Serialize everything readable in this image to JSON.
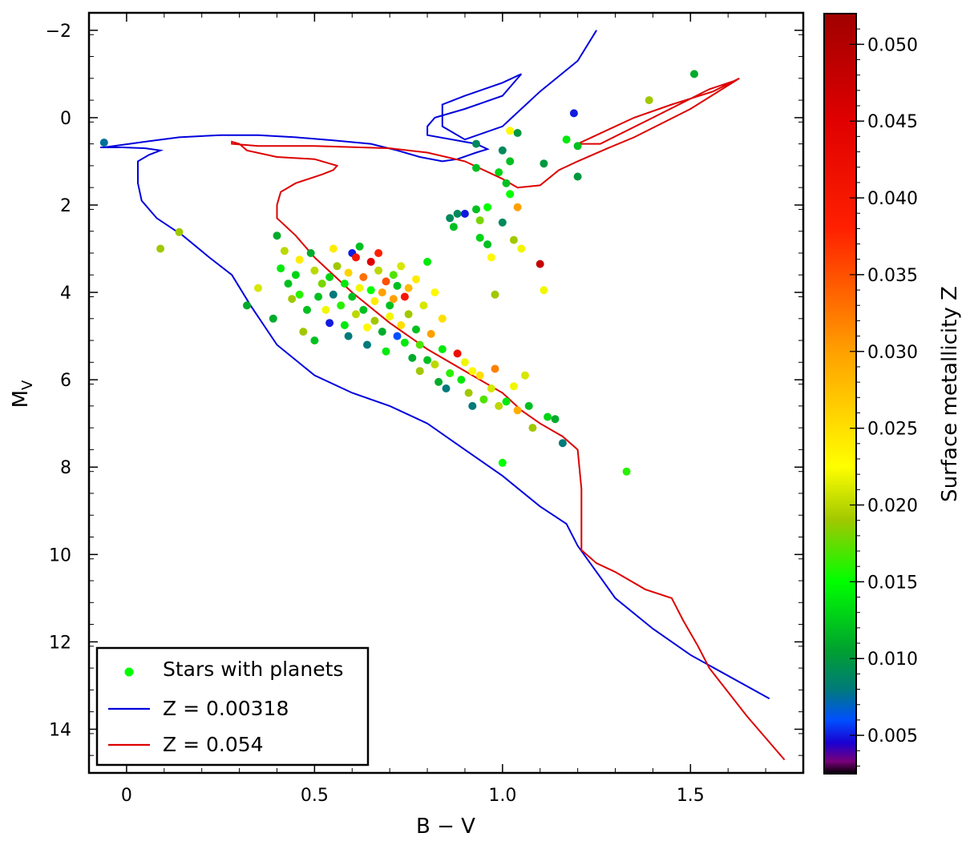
{
  "chart_data": {
    "type": "scatter",
    "xlabel": "B − V",
    "ylabel_main": "M",
    "ylabel_sub": "V",
    "xlim": [
      -0.1,
      1.8
    ],
    "ylim": [
      15.0,
      -2.4
    ],
    "y_inverted": true,
    "x_ticks": [
      {
        "value": 0,
        "label": "0"
      },
      {
        "value": 0.5,
        "label": "0.5"
      },
      {
        "value": 1.0,
        "label": "1.0"
      },
      {
        "value": 1.5,
        "label": "1.5"
      }
    ],
    "y_ticks": [
      {
        "value": -2,
        "label": "−2"
      },
      {
        "value": 0,
        "label": "0"
      },
      {
        "value": 2,
        "label": "2"
      },
      {
        "value": 4,
        "label": "4"
      },
      {
        "value": 6,
        "label": "6"
      },
      {
        "value": 8,
        "label": "8"
      },
      {
        "value": 10,
        "label": "10"
      },
      {
        "value": 12,
        "label": "12"
      },
      {
        "value": 14,
        "label": "14"
      }
    ],
    "colorbar": {
      "label": "Surface metallicity Z",
      "range": [
        0.0025,
        0.052
      ],
      "ticks": [
        {
          "value": 0.005,
          "label": "0.005"
        },
        {
          "value": 0.01,
          "label": "0.010"
        },
        {
          "value": 0.015,
          "label": "0.015"
        },
        {
          "value": 0.02,
          "label": "0.020"
        },
        {
          "value": 0.025,
          "label": "0.025"
        },
        {
          "value": 0.03,
          "label": "0.030"
        },
        {
          "value": 0.035,
          "label": "0.035"
        },
        {
          "value": 0.04,
          "label": "0.040"
        },
        {
          "value": 0.045,
          "label": "0.045"
        },
        {
          "value": 0.05,
          "label": "0.050"
        }
      ],
      "stops": [
        {
          "z": 0.0025,
          "color": "#000000"
        },
        {
          "z": 0.0033,
          "color": "#7a007a"
        },
        {
          "z": 0.0045,
          "color": "#1a00d0"
        },
        {
          "z": 0.006,
          "color": "#0050ff"
        },
        {
          "z": 0.008,
          "color": "#007a7a"
        },
        {
          "z": 0.0105,
          "color": "#00a030"
        },
        {
          "z": 0.015,
          "color": "#00ff00"
        },
        {
          "z": 0.019,
          "color": "#a0c800"
        },
        {
          "z": 0.0225,
          "color": "#ffff00"
        },
        {
          "z": 0.03,
          "color": "#ffa000"
        },
        {
          "z": 0.038,
          "color": "#ff2000"
        },
        {
          "z": 0.045,
          "color": "#e00000"
        },
        {
          "z": 0.052,
          "color": "#a00000"
        }
      ]
    },
    "legend": {
      "position": "bottom-left",
      "entries": [
        {
          "label": "Stars with planets",
          "kind": "marker",
          "color": "#00ff00"
        },
        {
          "label": "Z = 0.00318",
          "kind": "line",
          "color": "#0000dd"
        },
        {
          "label": "Z = 0.054",
          "kind": "line",
          "color": "#dd0000"
        }
      ]
    },
    "series": [
      {
        "name": "Z = 0.00318",
        "color": "#0000dd",
        "points": [
          [
            1.71,
            13.3
          ],
          [
            1.5,
            12.3
          ],
          [
            1.4,
            11.7
          ],
          [
            1.3,
            11.0
          ],
          [
            1.25,
            10.4
          ],
          [
            1.2,
            9.8
          ],
          [
            1.17,
            9.3
          ],
          [
            1.1,
            8.9
          ],
          [
            1.0,
            8.2
          ],
          [
            0.9,
            7.6
          ],
          [
            0.8,
            7.0
          ],
          [
            0.7,
            6.6
          ],
          [
            0.6,
            6.3
          ],
          [
            0.5,
            5.9
          ],
          [
            0.4,
            5.2
          ],
          [
            0.33,
            4.3
          ],
          [
            0.28,
            3.6
          ],
          [
            0.22,
            3.2
          ],
          [
            0.15,
            2.7
          ],
          [
            0.08,
            2.3
          ],
          [
            0.04,
            1.9
          ],
          [
            0.03,
            1.5
          ],
          [
            0.03,
            1.0
          ],
          [
            0.06,
            0.85
          ],
          [
            0.09,
            0.75
          ],
          [
            0.05,
            0.7
          ],
          [
            -0.01,
            0.68
          ],
          [
            -0.07,
            0.68
          ],
          [
            -0.06,
            0.68
          ],
          [
            0.05,
            0.55
          ],
          [
            0.14,
            0.45
          ],
          [
            0.25,
            0.4
          ],
          [
            0.35,
            0.4
          ],
          [
            0.45,
            0.45
          ],
          [
            0.55,
            0.52
          ],
          [
            0.65,
            0.6
          ],
          [
            0.72,
            0.75
          ],
          [
            0.78,
            0.9
          ],
          [
            0.84,
            1.0
          ],
          [
            0.88,
            0.95
          ],
          [
            0.93,
            0.8
          ],
          [
            0.96,
            0.72
          ],
          [
            0.93,
            0.6
          ],
          [
            0.8,
            0.4
          ],
          [
            0.8,
            0.2
          ],
          [
            0.82,
            0.0
          ],
          [
            0.9,
            -0.2
          ],
          [
            1.0,
            -0.5
          ],
          [
            1.05,
            -1.0
          ],
          [
            1.0,
            -0.8
          ],
          [
            0.9,
            -0.5
          ],
          [
            0.84,
            -0.3
          ],
          [
            0.84,
            0.2
          ],
          [
            0.9,
            0.5
          ],
          [
            1.0,
            0.2
          ],
          [
            1.1,
            -0.6
          ],
          [
            1.2,
            -1.3
          ],
          [
            1.25,
            -2.0
          ]
        ]
      },
      {
        "name": "Z = 0.054",
        "color": "#dd0000",
        "points": [
          [
            1.75,
            14.7
          ],
          [
            1.65,
            13.7
          ],
          [
            1.55,
            12.6
          ],
          [
            1.52,
            12.1
          ],
          [
            1.48,
            11.5
          ],
          [
            1.45,
            11.0
          ],
          [
            1.38,
            10.8
          ],
          [
            1.3,
            10.4
          ],
          [
            1.25,
            10.2
          ],
          [
            1.21,
            9.9
          ],
          [
            1.21,
            9.4
          ],
          [
            1.21,
            8.5
          ],
          [
            1.2,
            7.6
          ],
          [
            1.16,
            7.3
          ],
          [
            1.1,
            7.0
          ],
          [
            1.05,
            6.7
          ],
          [
            1.0,
            6.3
          ],
          [
            0.9,
            5.8
          ],
          [
            0.8,
            5.3
          ],
          [
            0.7,
            4.7
          ],
          [
            0.6,
            4.0
          ],
          [
            0.5,
            3.2
          ],
          [
            0.45,
            2.7
          ],
          [
            0.4,
            2.3
          ],
          [
            0.4,
            2.0
          ],
          [
            0.41,
            1.7
          ],
          [
            0.45,
            1.5
          ],
          [
            0.52,
            1.3
          ],
          [
            0.55,
            1.2
          ],
          [
            0.56,
            1.1
          ],
          [
            0.5,
            0.95
          ],
          [
            0.4,
            0.9
          ],
          [
            0.32,
            0.75
          ],
          [
            0.3,
            0.6
          ],
          [
            0.28,
            0.55
          ],
          [
            0.28,
            0.6
          ],
          [
            0.35,
            0.65
          ],
          [
            0.5,
            0.65
          ],
          [
            0.7,
            0.7
          ],
          [
            0.8,
            0.8
          ],
          [
            0.9,
            1.0
          ],
          [
            1.0,
            1.4
          ],
          [
            1.04,
            1.6
          ],
          [
            1.1,
            1.55
          ],
          [
            1.15,
            1.2
          ],
          [
            1.2,
            1.0
          ],
          [
            1.28,
            0.7
          ],
          [
            1.35,
            0.45
          ],
          [
            1.5,
            -0.2
          ],
          [
            1.63,
            -0.9
          ],
          [
            1.56,
            -0.6
          ],
          [
            1.45,
            -0.3
          ],
          [
            1.35,
            0.0
          ],
          [
            1.25,
            0.4
          ],
          [
            1.2,
            0.6
          ],
          [
            1.26,
            0.6
          ],
          [
            1.4,
            0.0
          ],
          [
            1.55,
            -0.65
          ],
          [
            1.62,
            -0.85
          ]
        ]
      }
    ],
    "stars": [
      [
        -0.06,
        0.57,
        0.0075
      ],
      [
        0.09,
        3.0,
        0.019
      ],
      [
        0.14,
        2.62,
        0.019
      ],
      [
        0.32,
        4.3,
        0.011
      ],
      [
        0.35,
        3.9,
        0.021
      ],
      [
        0.39,
        4.6,
        0.011
      ],
      [
        0.4,
        2.7,
        0.011
      ],
      [
        0.41,
        3.45,
        0.014
      ],
      [
        0.42,
        3.05,
        0.02
      ],
      [
        0.43,
        3.8,
        0.012
      ],
      [
        0.44,
        4.15,
        0.019
      ],
      [
        0.45,
        3.6,
        0.013
      ],
      [
        0.46,
        3.25,
        0.024
      ],
      [
        0.46,
        4.05,
        0.016
      ],
      [
        0.47,
        4.9,
        0.019
      ],
      [
        0.48,
        4.4,
        0.012
      ],
      [
        0.49,
        3.1,
        0.011
      ],
      [
        0.5,
        5.1,
        0.012
      ],
      [
        0.5,
        3.5,
        0.02
      ],
      [
        0.51,
        4.1,
        0.012
      ],
      [
        0.52,
        3.8,
        0.018
      ],
      [
        0.53,
        4.4,
        0.022
      ],
      [
        0.54,
        3.65,
        0.013
      ],
      [
        0.54,
        4.7,
        0.005
      ],
      [
        0.55,
        3.0,
        0.024
      ],
      [
        0.55,
        4.05,
        0.008
      ],
      [
        0.56,
        3.4,
        0.019
      ],
      [
        0.57,
        4.3,
        0.016
      ],
      [
        0.58,
        3.8,
        0.014
      ],
      [
        0.58,
        4.75,
        0.014
      ],
      [
        0.59,
        5.0,
        0.008
      ],
      [
        0.59,
        3.55,
        0.026
      ],
      [
        0.6,
        3.1,
        0.005
      ],
      [
        0.6,
        4.1,
        0.012
      ],
      [
        0.61,
        3.2,
        0.04
      ],
      [
        0.61,
        4.5,
        0.02
      ],
      [
        0.62,
        2.95,
        0.012
      ],
      [
        0.62,
        3.9,
        0.022
      ],
      [
        0.63,
        4.4,
        0.012
      ],
      [
        0.63,
        3.65,
        0.033
      ],
      [
        0.64,
        4.8,
        0.023
      ],
      [
        0.64,
        5.2,
        0.008
      ],
      [
        0.65,
        3.95,
        0.015
      ],
      [
        0.65,
        3.3,
        0.045
      ],
      [
        0.66,
        4.2,
        0.024
      ],
      [
        0.66,
        4.65,
        0.019
      ],
      [
        0.67,
        3.5,
        0.02
      ],
      [
        0.67,
        3.1,
        0.038
      ],
      [
        0.68,
        4.9,
        0.011
      ],
      [
        0.68,
        4.0,
        0.03
      ],
      [
        0.69,
        5.35,
        0.014
      ],
      [
        0.69,
        3.75,
        0.035
      ],
      [
        0.7,
        4.3,
        0.012
      ],
      [
        0.7,
        4.55,
        0.022
      ],
      [
        0.71,
        3.6,
        0.017
      ],
      [
        0.71,
        4.15,
        0.03
      ],
      [
        0.72,
        5.0,
        0.006
      ],
      [
        0.72,
        3.85,
        0.012
      ],
      [
        0.73,
        4.75,
        0.025
      ],
      [
        0.73,
        3.4,
        0.021
      ],
      [
        0.74,
        5.15,
        0.014
      ],
      [
        0.74,
        4.1,
        0.04
      ],
      [
        0.75,
        3.9,
        0.028
      ],
      [
        0.75,
        4.5,
        0.019
      ],
      [
        0.76,
        5.5,
        0.011
      ],
      [
        0.77,
        4.85,
        0.012
      ],
      [
        0.77,
        3.7,
        0.024
      ],
      [
        0.78,
        5.2,
        0.017
      ],
      [
        0.78,
        5.8,
        0.019
      ],
      [
        0.79,
        4.3,
        0.021
      ],
      [
        0.8,
        5.55,
        0.012
      ],
      [
        0.8,
        3.3,
        0.014
      ],
      [
        0.81,
        4.95,
        0.03
      ],
      [
        0.82,
        5.65,
        0.02
      ],
      [
        0.82,
        4.0,
        0.023
      ],
      [
        0.83,
        6.05,
        0.011
      ],
      [
        0.84,
        5.3,
        0.014
      ],
      [
        0.84,
        4.6,
        0.025
      ],
      [
        0.85,
        6.2,
        0.008
      ],
      [
        0.86,
        5.85,
        0.016
      ],
      [
        0.86,
        2.3,
        0.009
      ],
      [
        0.87,
        2.5,
        0.012
      ],
      [
        0.88,
        5.4,
        0.042
      ],
      [
        0.88,
        2.2,
        0.009
      ],
      [
        0.89,
        6.0,
        0.014
      ],
      [
        0.9,
        5.6,
        0.022
      ],
      [
        0.9,
        2.2,
        0.005
      ],
      [
        0.91,
        6.3,
        0.019
      ],
      [
        0.92,
        5.8,
        0.023
      ],
      [
        0.92,
        6.6,
        0.008
      ],
      [
        0.93,
        0.6,
        0.009
      ],
      [
        0.93,
        1.15,
        0.012
      ],
      [
        0.93,
        2.1,
        0.012
      ],
      [
        0.94,
        2.35,
        0.018
      ],
      [
        0.94,
        2.75,
        0.013
      ],
      [
        0.94,
        5.9,
        0.025
      ],
      [
        0.95,
        6.45,
        0.017
      ],
      [
        0.96,
        2.05,
        0.015
      ],
      [
        0.96,
        2.9,
        0.012
      ],
      [
        0.97,
        6.2,
        0.021
      ],
      [
        0.97,
        3.2,
        0.023
      ],
      [
        0.98,
        4.05,
        0.019
      ],
      [
        0.98,
        5.75,
        0.032
      ],
      [
        0.99,
        6.6,
        0.02
      ],
      [
        0.99,
        1.25,
        0.013
      ],
      [
        1.0,
        0.75,
        0.009
      ],
      [
        1.0,
        2.4,
        0.009
      ],
      [
        1.0,
        7.9,
        0.015
      ],
      [
        1.01,
        6.5,
        0.014
      ],
      [
        1.01,
        1.5,
        0.012
      ],
      [
        1.02,
        0.3,
        0.023
      ],
      [
        1.02,
        1.0,
        0.012
      ],
      [
        1.02,
        1.75,
        0.015
      ],
      [
        1.03,
        6.15,
        0.022
      ],
      [
        1.03,
        2.8,
        0.019
      ],
      [
        1.04,
        0.35,
        0.01
      ],
      [
        1.04,
        2.05,
        0.03
      ],
      [
        1.04,
        6.7,
        0.029
      ],
      [
        1.05,
        3.0,
        0.022
      ],
      [
        1.06,
        5.9,
        0.021
      ],
      [
        1.07,
        6.6,
        0.012
      ],
      [
        1.08,
        7.1,
        0.019
      ],
      [
        1.1,
        3.35,
        0.048
      ],
      [
        1.11,
        1.05,
        0.01
      ],
      [
        1.11,
        3.95,
        0.022
      ],
      [
        1.12,
        6.85,
        0.013
      ],
      [
        1.14,
        6.9,
        0.011
      ],
      [
        1.16,
        7.45,
        0.008
      ],
      [
        1.17,
        0.5,
        0.014
      ],
      [
        1.19,
        -0.1,
        0.005
      ],
      [
        1.2,
        0.65,
        0.012
      ],
      [
        1.2,
        1.35,
        0.01
      ],
      [
        1.33,
        8.1,
        0.016
      ],
      [
        1.39,
        -0.4,
        0.019
      ],
      [
        1.51,
        -1.0,
        0.011
      ]
    ]
  }
}
